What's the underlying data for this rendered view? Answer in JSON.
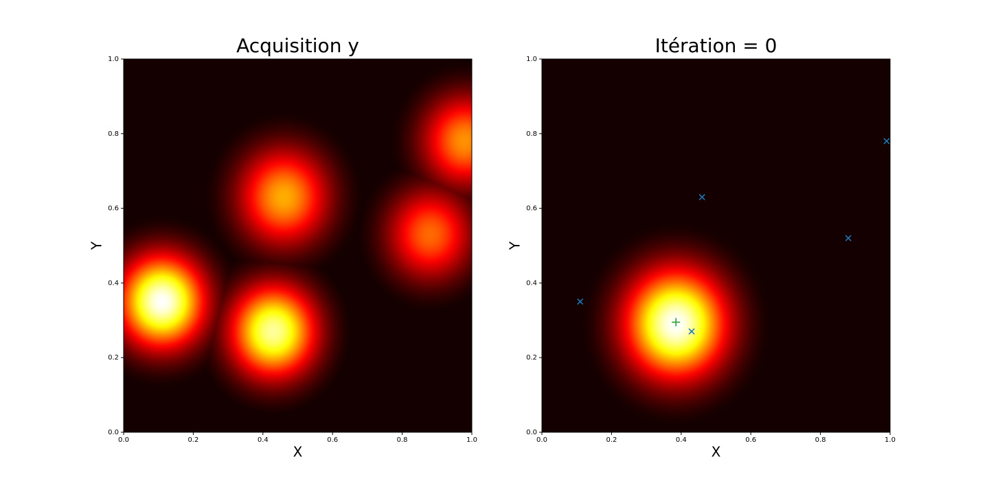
{
  "chart_data": [
    {
      "type": "heatmap",
      "title": "Acquisition y",
      "xlabel": "X",
      "ylabel": "Y",
      "colormap": "hot",
      "xlim": [
        0,
        1
      ],
      "ylim": [
        0,
        1
      ],
      "xticks": [
        {
          "value": 0,
          "label": "0.0"
        },
        0.2,
        0.4,
        0.6,
        0.8,
        {
          "value": 1,
          "label": "1.0"
        }
      ],
      "yticks": [
        {
          "value": 0,
          "label": "0.0"
        },
        0.2,
        0.4,
        0.6,
        0.8,
        {
          "value": 1,
          "label": "1.0"
        }
      ],
      "floor": 0.03,
      "blobs": [
        {
          "x": 0.11,
          "y": 0.35,
          "peak": 1.0,
          "spread": 0.085
        },
        {
          "x": 0.43,
          "y": 0.27,
          "peak": 0.9,
          "spread": 0.085
        },
        {
          "x": 0.46,
          "y": 0.63,
          "peak": 0.62,
          "spread": 0.09
        },
        {
          "x": 0.88,
          "y": 0.53,
          "peak": 0.52,
          "spread": 0.085
        },
        {
          "x": 0.98,
          "y": 0.78,
          "peak": 0.58,
          "spread": 0.085
        }
      ]
    },
    {
      "type": "heatmap",
      "title": "Itération = 0",
      "xlabel": "X",
      "ylabel": "Y",
      "colormap": "hot",
      "xlim": [
        0,
        1
      ],
      "ylim": [
        0,
        1
      ],
      "xticks": [
        {
          "value": 0,
          "label": "0.0"
        },
        0.2,
        0.4,
        0.6,
        0.8,
        {
          "value": 1,
          "label": "1.0"
        }
      ],
      "yticks": [
        {
          "value": 0,
          "label": "0.0"
        },
        0.2,
        0.4,
        0.6,
        0.8,
        {
          "value": 1,
          "label": "1.0"
        }
      ],
      "floor": 0.03,
      "blobs": [
        {
          "x": 0.385,
          "y": 0.29,
          "peak": 1.0,
          "spread": 0.1
        }
      ],
      "markers": {
        "marker": "x",
        "color": "#1f77b4",
        "x": [
          0.11,
          0.43,
          0.46,
          0.88,
          0.99
        ],
        "y": [
          0.35,
          0.27,
          0.63,
          0.52,
          0.78
        ]
      },
      "best": {
        "marker": "+",
        "color": "#2ca02c",
        "x": [
          0.385
        ],
        "y": [
          0.295
        ]
      }
    }
  ]
}
